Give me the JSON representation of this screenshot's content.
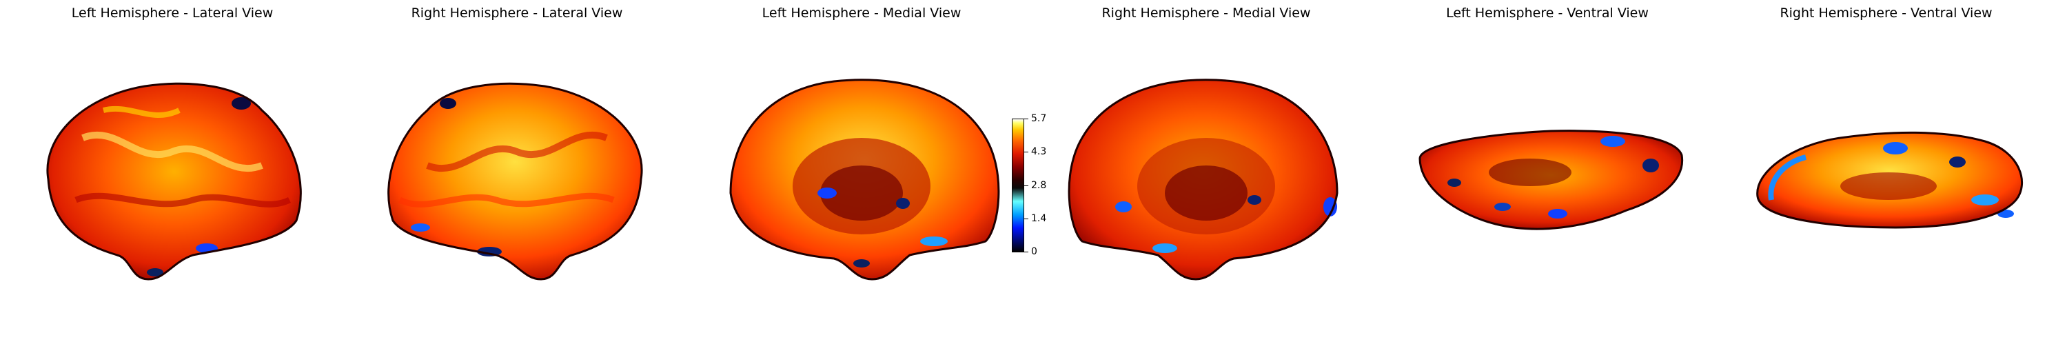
{
  "panels": [
    {
      "title": "Left Hemisphere - Lateral View"
    },
    {
      "title": "Right Hemisphere - Lateral View"
    },
    {
      "title": "Left Hemisphere - Medial View"
    },
    {
      "title": "Right Hemisphere - Medial View"
    },
    {
      "title": "Left Hemisphere - Ventral View"
    },
    {
      "title": "Right Hemisphere - Ventral View"
    }
  ],
  "colorbar": {
    "colormap": "cold-hot",
    "ticks": [
      "5.7",
      "4.3",
      "2.8",
      "1.4",
      "0"
    ],
    "colors": {
      "hot_low": "#8a0000",
      "hot_mid": "#ff4a00",
      "hot_high": "#ffff40",
      "cold": "#0a5cff",
      "dark": "#1a0000"
    }
  }
}
